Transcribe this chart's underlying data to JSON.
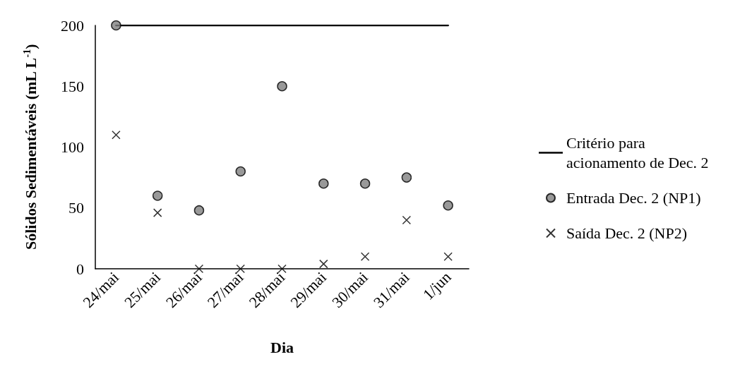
{
  "chart_data": {
    "type": "scatter",
    "xlabel": "Dia",
    "ylabel": "Sólidos Sedimentáveis (mL L$^{-1}$)",
    "categories": [
      "24/mai",
      "25/mai",
      "26/mai",
      "27/mai",
      "28/mai",
      "29/mai",
      "30/mai",
      "31/mai",
      "1/jun"
    ],
    "ylim": [
      0,
      200
    ],
    "yticks": [
      0,
      50,
      100,
      150,
      200
    ],
    "grid": false,
    "legend": "right",
    "series": [
      {
        "name": "Critério para acionamento de Dec. 2",
        "type": "line",
        "color": "#000000",
        "marker": "none",
        "line_style": "solid",
        "values": [
          200,
          200,
          200,
          200,
          200,
          200,
          200,
          200,
          200
        ]
      },
      {
        "name": "Entrada Dec. 2 (NP1)",
        "color": "#808080",
        "marker": "circle",
        "values": [
          200,
          60,
          48,
          80,
          150,
          70,
          70,
          75,
          52
        ]
      },
      {
        "name": "Saída Dec. 2 (NP2)",
        "color": "#000000",
        "marker": "cross",
        "values": [
          110,
          46,
          0,
          0,
          0,
          4,
          10,
          40,
          10
        ]
      }
    ]
  }
}
